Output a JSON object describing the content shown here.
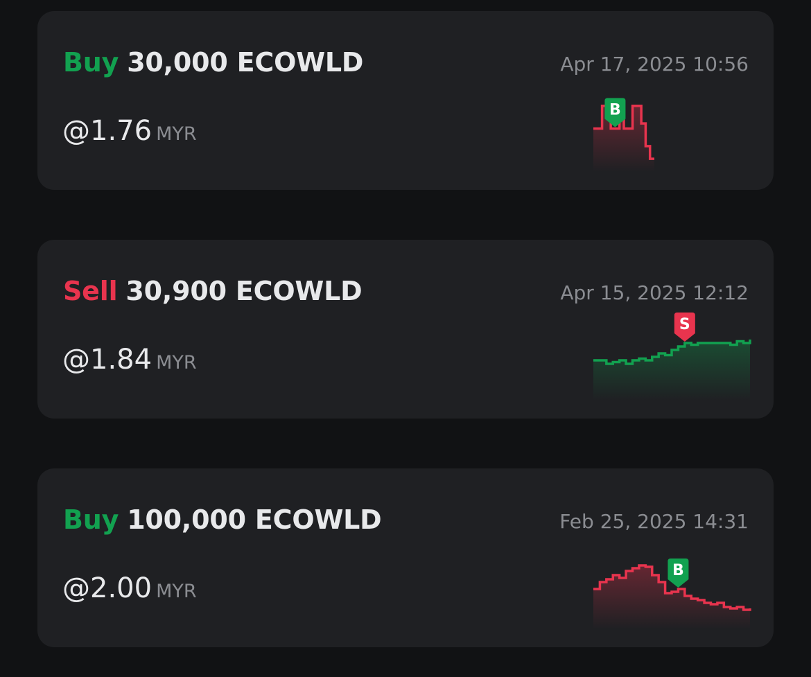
{
  "trades": [
    {
      "side": "Buy",
      "side_type": "buy",
      "title": "30,000 ECOWLD",
      "date": "Apr 17, 2025 10:56",
      "price": "@1.76",
      "currency": "MYR",
      "chart_data": {
        "type": "line",
        "line_color": "#e8344e",
        "marker": "B",
        "marker_color": "#12a150",
        "marker_index": 5,
        "values": [
          1.9,
          1.9,
          2.08,
          2.08,
          1.9,
          1.9,
          2.02,
          1.9,
          1.9,
          2.08,
          2.08,
          1.94,
          1.76,
          1.66,
          1.66
        ],
        "ylim": [
          1.6,
          2.15
        ]
      }
    },
    {
      "side": "Sell",
      "side_type": "sell",
      "title": "30,900 ECOWLD",
      "date": "Apr 15, 2025 12:12",
      "price": "@1.84",
      "currency": "MYR",
      "chart_data": {
        "type": "line",
        "line_color": "#12a150",
        "marker": "S",
        "marker_color": "#e8344e",
        "marker_index": 14,
        "values": [
          1.7,
          1.7,
          1.68,
          1.69,
          1.7,
          1.68,
          1.7,
          1.71,
          1.7,
          1.72,
          1.74,
          1.73,
          1.76,
          1.78,
          1.8,
          1.79,
          1.8,
          1.8,
          1.8,
          1.8,
          1.8,
          1.79,
          1.81,
          1.8,
          1.82
        ],
        "ylim": [
          1.5,
          1.9
        ]
      }
    },
    {
      "side": "Buy",
      "side_type": "buy",
      "title": "100,000 ECOWLD",
      "date": "Feb 25, 2025 14:31",
      "price": "@2.00",
      "currency": "MYR",
      "chart_data": {
        "type": "line",
        "line_color": "#e8344e",
        "marker": "B",
        "marker_color": "#12a150",
        "marker_index": 13,
        "values": [
          1.95,
          2.0,
          2.02,
          2.05,
          2.03,
          2.08,
          2.1,
          2.12,
          2.11,
          2.05,
          2.0,
          1.92,
          1.93,
          1.95,
          1.9,
          1.88,
          1.87,
          1.85,
          1.84,
          1.85,
          1.82,
          1.81,
          1.82,
          1.8,
          1.81
        ],
        "ylim": [
          1.7,
          2.2
        ]
      }
    }
  ]
}
